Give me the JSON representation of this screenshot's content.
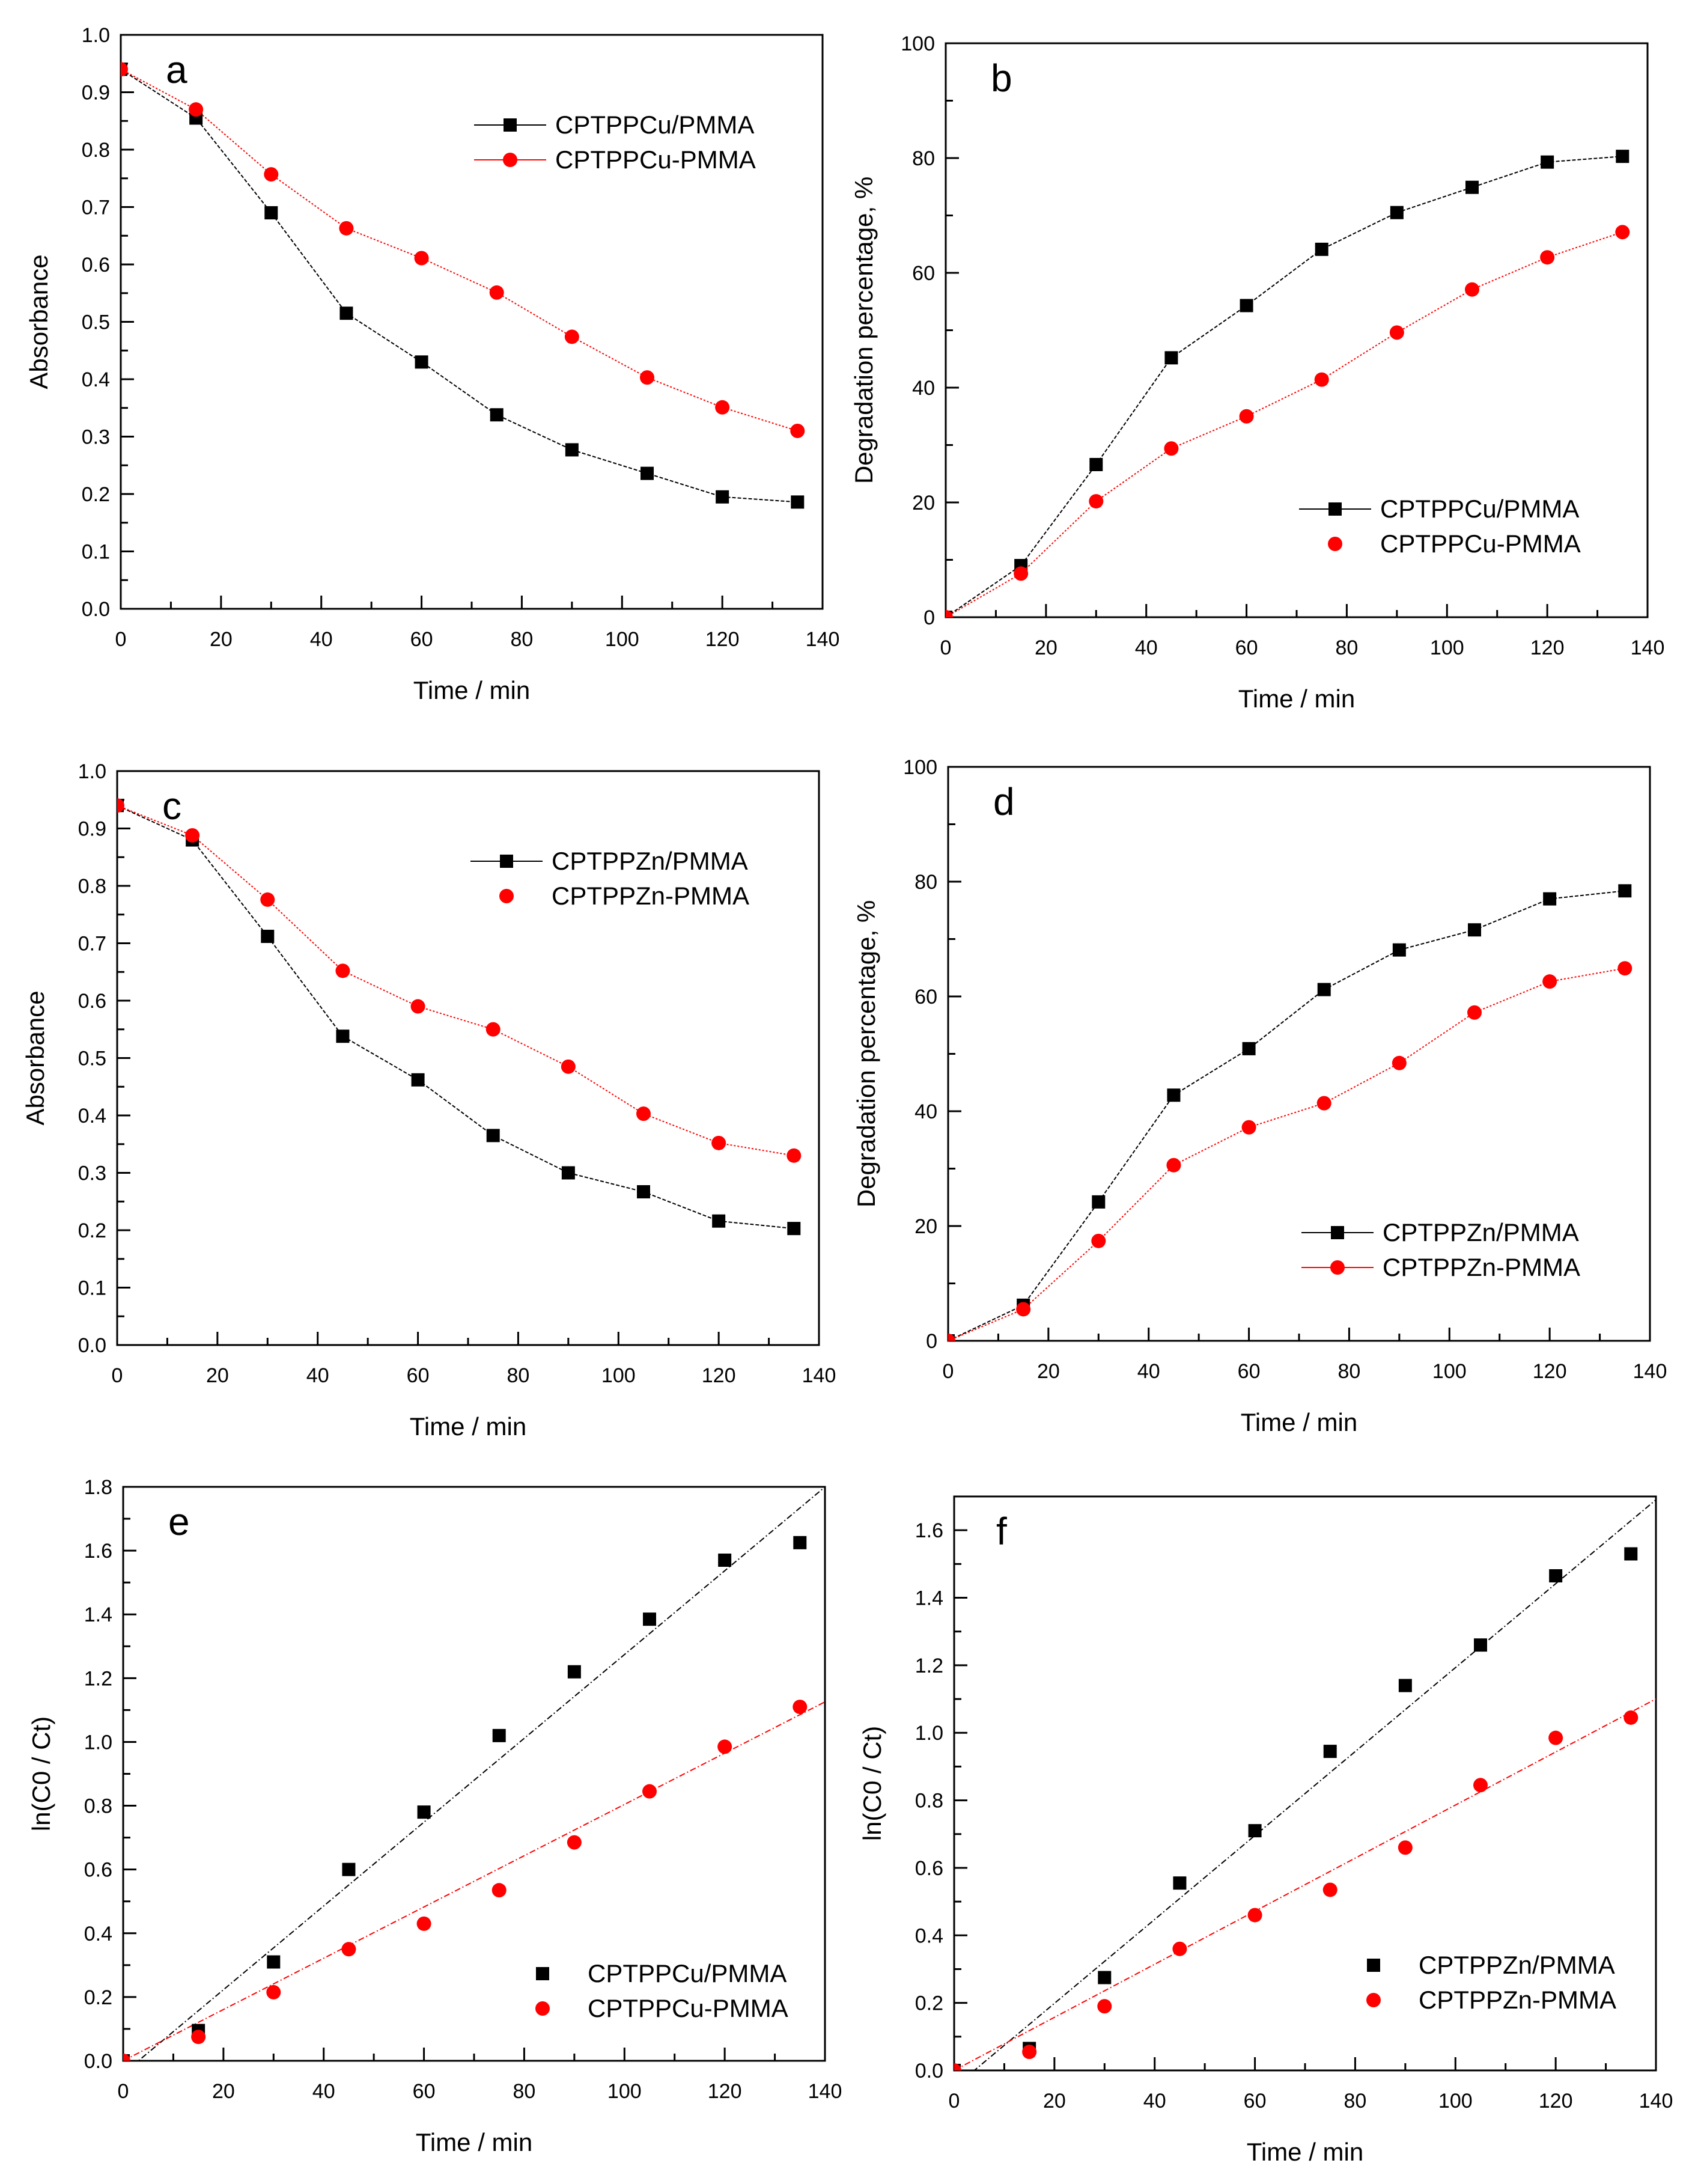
{
  "chart_data": [
    {
      "panel": "a",
      "type": "line",
      "xlabel": "Time / min",
      "ylabel": "Absorbance",
      "xlim": [
        0,
        140
      ],
      "ylim": [
        0,
        1.0
      ],
      "xticks": [
        0,
        20,
        40,
        60,
        80,
        100,
        120,
        140
      ],
      "yticks": [
        0,
        0.1,
        0.2,
        0.3,
        0.4,
        0.5,
        0.6,
        0.7,
        0.8,
        0.9,
        1.0
      ],
      "ydecimals": 1,
      "legend": "top-right",
      "x": [
        0,
        15,
        30,
        45,
        60,
        75,
        90,
        105,
        120,
        135
      ],
      "series": [
        {
          "name": "CPTPPCu/PMMA",
          "color": "#000000",
          "marker": "square",
          "line": true,
          "legend_line": true,
          "values": [
            0.94,
            0.855,
            0.69,
            0.515,
            0.43,
            0.338,
            0.277,
            0.236,
            0.195,
            0.186
          ]
        },
        {
          "name": "CPTPPCu-PMMA",
          "color": "#ff0000",
          "marker": "circle",
          "line": true,
          "legend_line": true,
          "values": [
            0.94,
            0.87,
            0.757,
            0.663,
            0.611,
            0.551,
            0.474,
            0.403,
            0.351,
            0.31
          ]
        }
      ]
    },
    {
      "panel": "b",
      "type": "line",
      "xlabel": "Time / min",
      "ylabel": "Degradation percentage, %",
      "xlim": [
        0,
        140
      ],
      "ylim": [
        0,
        100
      ],
      "xticks": [
        0,
        20,
        40,
        60,
        80,
        100,
        120,
        140
      ],
      "yticks": [
        0,
        20,
        40,
        60,
        80,
        100
      ],
      "ydecimals": 0,
      "legend": "bottom-right",
      "x": [
        0,
        15,
        30,
        45,
        60,
        75,
        90,
        105,
        120,
        135
      ],
      "series": [
        {
          "name": "CPTPPCu/PMMA",
          "color": "#000000",
          "marker": "square",
          "line": true,
          "legend_line": true,
          "values": [
            0,
            9.0,
            26.6,
            45.2,
            54.3,
            64.1,
            70.5,
            74.9,
            79.3,
            80.3
          ]
        },
        {
          "name": "CPTPPCu-PMMA",
          "color": "#ff0000",
          "marker": "circle",
          "line": true,
          "legend_line": false,
          "values": [
            0,
            7.6,
            20.2,
            29.4,
            35.0,
            41.4,
            49.6,
            57.1,
            62.7,
            67.1
          ]
        }
      ]
    },
    {
      "panel": "c",
      "type": "line",
      "xlabel": "Time / min",
      "ylabel": "Absorbance",
      "xlim": [
        0,
        140
      ],
      "ylim": [
        0,
        1.0
      ],
      "xticks": [
        0,
        20,
        40,
        60,
        80,
        100,
        120,
        140
      ],
      "yticks": [
        0,
        0.1,
        0.2,
        0.3,
        0.4,
        0.5,
        0.6,
        0.7,
        0.8,
        0.9,
        1.0
      ],
      "ydecimals": 1,
      "legend": "top-right",
      "x": [
        0,
        15,
        30,
        45,
        60,
        75,
        90,
        105,
        120,
        135
      ],
      "series": [
        {
          "name": "CPTPPZn/PMMA",
          "color": "#000000",
          "marker": "square",
          "line": true,
          "legend_line": true,
          "values": [
            0.94,
            0.88,
            0.712,
            0.538,
            0.462,
            0.365,
            0.3,
            0.267,
            0.216,
            0.203
          ]
        },
        {
          "name": "CPTPPZn-PMMA",
          "color": "#ff0000",
          "marker": "circle",
          "line": true,
          "legend_line": false,
          "values": [
            0.94,
            0.888,
            0.776,
            0.652,
            0.59,
            0.55,
            0.485,
            0.403,
            0.352,
            0.33
          ]
        }
      ]
    },
    {
      "panel": "d",
      "type": "line",
      "xlabel": "Time / min",
      "ylabel": "Degradation percentage, %",
      "xlim": [
        0,
        140
      ],
      "ylim": [
        0,
        100
      ],
      "xticks": [
        0,
        20,
        40,
        60,
        80,
        100,
        120,
        140
      ],
      "yticks": [
        0,
        20,
        40,
        60,
        80,
        100
      ],
      "ydecimals": 0,
      "legend": "bottom-right",
      "x": [
        0,
        15,
        30,
        45,
        60,
        75,
        90,
        105,
        120,
        135
      ],
      "series": [
        {
          "name": "CPTPPZn/PMMA",
          "color": "#000000",
          "marker": "square",
          "line": true,
          "legend_line": true,
          "values": [
            0,
            6.2,
            24.2,
            42.8,
            50.9,
            61.2,
            68.1,
            71.6,
            77.0,
            78.4
          ]
        },
        {
          "name": "CPTPPZn-PMMA",
          "color": "#ff0000",
          "marker": "circle",
          "line": true,
          "legend_line": true,
          "values": [
            0,
            5.5,
            17.4,
            30.6,
            37.2,
            41.4,
            48.4,
            57.2,
            62.6,
            64.9
          ]
        }
      ]
    },
    {
      "panel": "e",
      "type": "scatter",
      "xlabel": "Time / min",
      "ylabel": "ln(C0 / Ct)",
      "xlim": [
        0,
        140
      ],
      "ylim": [
        0,
        1.8
      ],
      "xticks": [
        0,
        20,
        40,
        60,
        80,
        100,
        120,
        140
      ],
      "yticks": [
        0,
        0.2,
        0.4,
        0.6,
        0.8,
        1.0,
        1.2,
        1.4,
        1.6,
        1.8
      ],
      "ydecimals": 1,
      "legend": "bottom-right",
      "x": [
        0,
        15,
        30,
        45,
        60,
        75,
        90,
        105,
        120,
        135
      ],
      "series": [
        {
          "name": "CPTPPCu/PMMA",
          "color": "#000000",
          "marker": "square",
          "line": false,
          "legend_line": false,
          "fit": {
            "slope": 0.01314,
            "intercept": -0.04
          },
          "values": [
            0,
            0.095,
            0.31,
            0.6,
            0.78,
            1.02,
            1.22,
            1.385,
            1.57,
            1.625
          ]
        },
        {
          "name": "CPTPPCu-PMMA",
          "color": "#ff0000",
          "marker": "circle",
          "line": false,
          "legend_line": false,
          "fit": {
            "slope": 0.00804,
            "intercept": 0
          },
          "values": [
            0,
            0.075,
            0.215,
            0.35,
            0.43,
            0.535,
            0.685,
            0.845,
            0.985,
            1.11
          ]
        }
      ]
    },
    {
      "panel": "f",
      "type": "scatter",
      "xlabel": "Time / min",
      "ylabel": "ln(C0 / Ct)",
      "xlim": [
        0,
        140
      ],
      "ylim": [
        0,
        1.7
      ],
      "xticks": [
        0,
        20,
        40,
        60,
        80,
        100,
        120,
        140
      ],
      "yticks": [
        0,
        0.2,
        0.4,
        0.6,
        0.8,
        1.0,
        1.2,
        1.4,
        1.6
      ],
      "ydecimals": 1,
      "legend": "bottom-right",
      "x": [
        0,
        15,
        30,
        45,
        60,
        75,
        90,
        105,
        120,
        135
      ],
      "series": [
        {
          "name": "CPTPPZn/PMMA",
          "color": "#000000",
          "marker": "square",
          "line": false,
          "legend_line": false,
          "fit": {
            "slope": 0.01243,
            "intercept": -0.05
          },
          "values": [
            0,
            0.065,
            0.275,
            0.555,
            0.71,
            0.945,
            1.14,
            1.26,
            1.465,
            1.53
          ]
        },
        {
          "name": "CPTPPZn-PMMA",
          "color": "#ff0000",
          "marker": "circle",
          "line": false,
          "legend_line": false,
          "fit": {
            "slope": 0.00786,
            "intercept": 0
          },
          "values": [
            0,
            0.055,
            0.19,
            0.36,
            0.46,
            0.535,
            0.66,
            0.845,
            0.985,
            1.045
          ]
        }
      ]
    }
  ]
}
